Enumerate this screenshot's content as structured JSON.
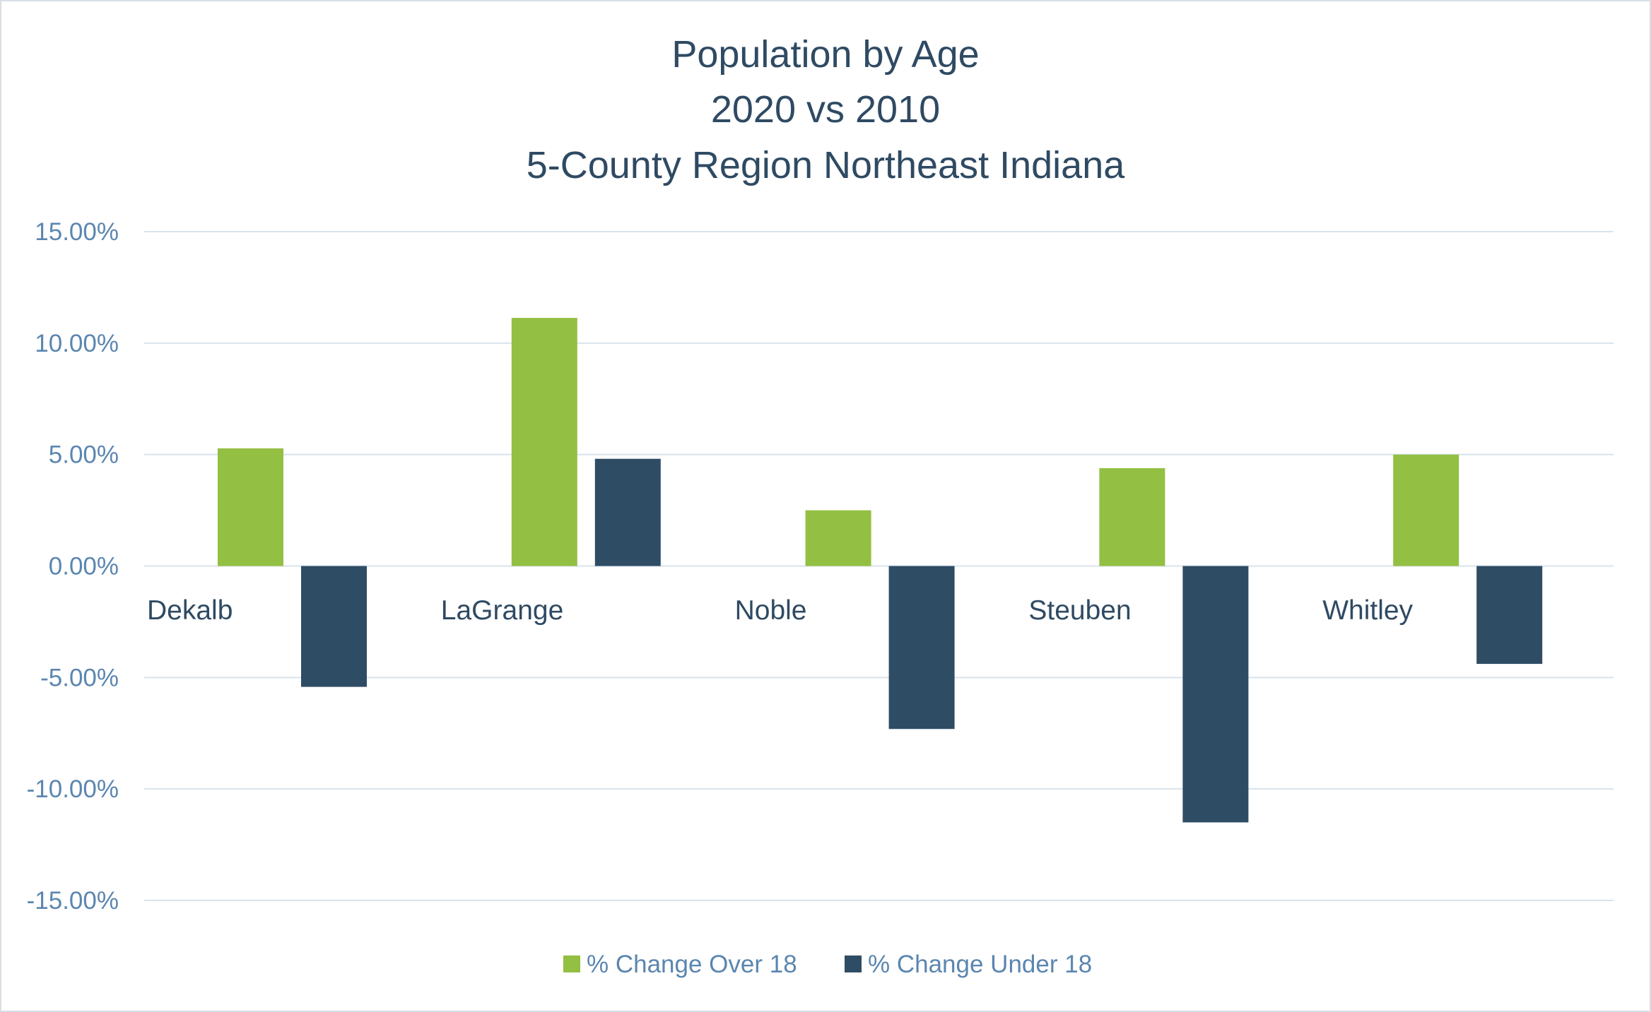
{
  "chart_data": {
    "type": "bar",
    "title": [
      "Population by Age",
      "2020 vs 2010",
      "5-County Region Northeast Indiana"
    ],
    "categories": [
      "Dekalb",
      "LaGrange",
      "Noble",
      "Steuben",
      "Whitley"
    ],
    "series": [
      {
        "name": "% Change Over 18",
        "color": "#93bf42",
        "values": [
          5.28,
          11.13,
          2.5,
          4.39,
          5.0
        ]
      },
      {
        "name": "% Change Under 18",
        "color": "#2f4c65",
        "values": [
          -5.42,
          4.81,
          -7.31,
          -11.5,
          -4.39
        ]
      }
    ],
    "ylim": [
      -15,
      15
    ],
    "yticks": [
      15,
      10,
      5,
      0,
      -5,
      -10,
      -15
    ],
    "ytick_labels": [
      "15.00%",
      "10.00%",
      "5.00%",
      "0.00%",
      "-5.00%",
      "-10.00%",
      "-15.00%"
    ],
    "grid": true,
    "legend": "bottom",
    "xlabel": "",
    "ylabel": ""
  }
}
